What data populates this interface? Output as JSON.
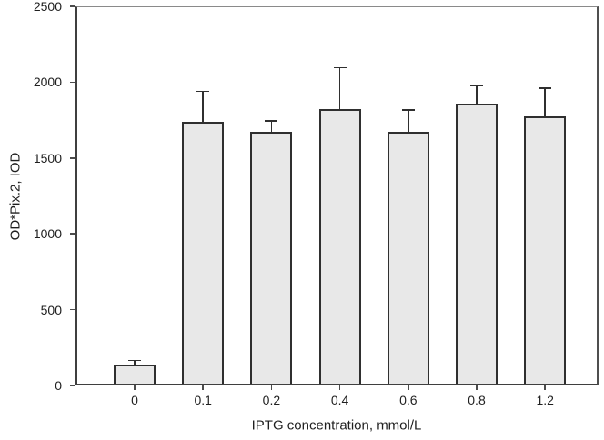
{
  "chart_data": {
    "type": "bar",
    "title": "",
    "xlabel": "IPTG concentration, mmol/L",
    "ylabel": "OD*Pix.2, IOD",
    "categories": [
      "0",
      "0.1",
      "0.2",
      "0.4",
      "0.6",
      "0.8",
      "1.2"
    ],
    "values": [
      140,
      1740,
      1675,
      1825,
      1670,
      1860,
      1775
    ],
    "errors_plus": [
      30,
      205,
      75,
      275,
      150,
      120,
      190
    ],
    "ylim": [
      0,
      2500
    ],
    "yticks": [
      "0",
      "500",
      "1000",
      "1500",
      "2000",
      "2500"
    ],
    "grid": false,
    "legend": "none",
    "frame_box": true,
    "colors": {
      "bar_fill": "#e8e8e8",
      "bar_border": "#2f2f2f",
      "error_bar": "#2f2f2f",
      "axis": "#4c4c4c",
      "text": "#1f1f1f"
    }
  }
}
